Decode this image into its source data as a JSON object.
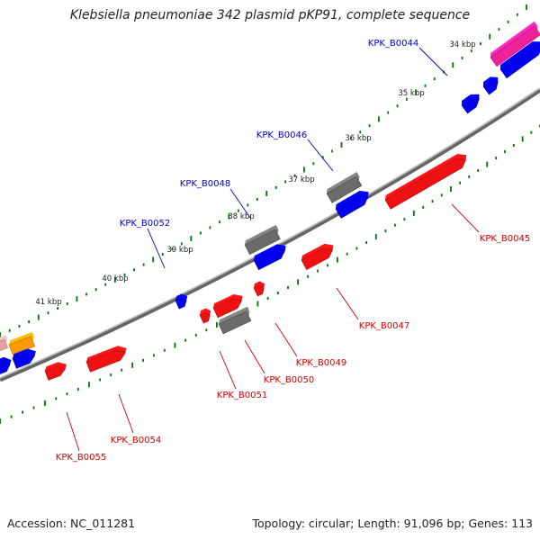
{
  "title": "Klebsiella pneumoniae 342 plasmid pKP91, complete sequence",
  "footer": {
    "accession": "Accession: NC_011281",
    "summary": "Topology: circular; Length: 91,096 bp; Genes: 113"
  },
  "colors": {
    "backbone": "#808080",
    "tick": "#007700",
    "label_forward": "#0000cc",
    "label_reverse": "#cc0000",
    "gene_forward": "#0000ee",
    "gene_reverse": "#ee1111",
    "gene_other": "#6b6b6b",
    "gene_pink": "#ee2299",
    "gene_orange": "#ff9900"
  },
  "kbp_marks": [
    "34 kbp",
    "35 kbp",
    "36 kbp",
    "37 kbp",
    "38 kbp",
    "39 kbp",
    "40 kbp",
    "41 kbp"
  ],
  "gene_labels": [
    {
      "id": "KPK_B0044",
      "strand": "forward"
    },
    {
      "id": "KPK_B0045",
      "strand": "reverse"
    },
    {
      "id": "KPK_B0046",
      "strand": "forward"
    },
    {
      "id": "KPK_B0047",
      "strand": "reverse"
    },
    {
      "id": "KPK_B0048",
      "strand": "forward"
    },
    {
      "id": "KPK_B0049",
      "strand": "reverse"
    },
    {
      "id": "KPK_B0050",
      "strand": "reverse"
    },
    {
      "id": "KPK_B0051",
      "strand": "reverse"
    },
    {
      "id": "KPK_B0052",
      "strand": "forward"
    },
    {
      "id": "KPK_B0054",
      "strand": "reverse"
    },
    {
      "id": "KPK_B0055",
      "strand": "reverse"
    }
  ]
}
